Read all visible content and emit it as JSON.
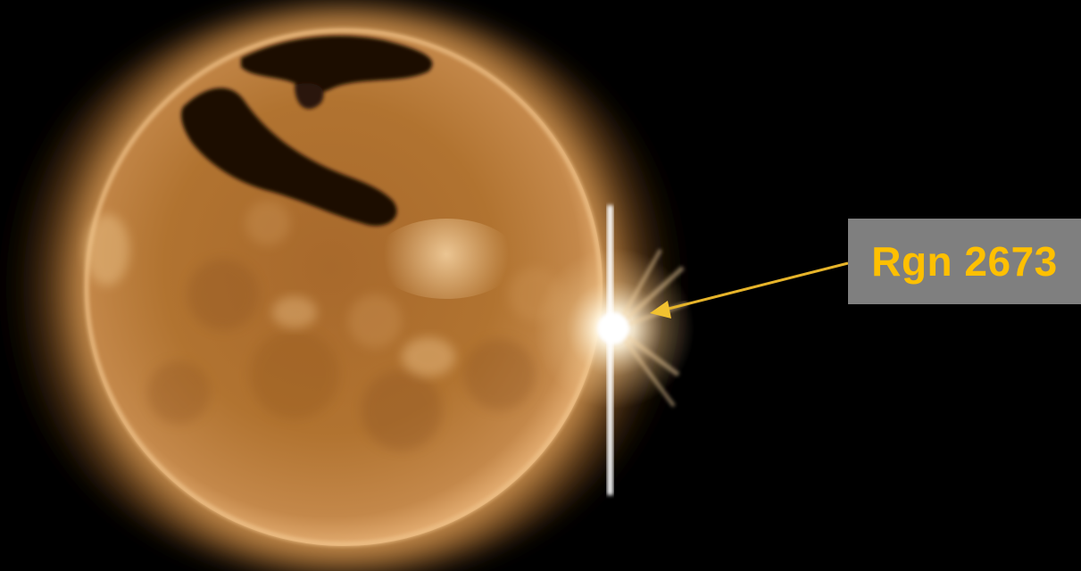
{
  "annotation": {
    "label": "Rgn 2673",
    "label_color": "#ffc000",
    "box_color": "#7f7f7f",
    "arrow_color": "#e6b42a"
  },
  "colors": {
    "background": "#000000",
    "sun_core": "#b0702e",
    "sun_corona": "#e0a25a",
    "coronal_hole": "#120804",
    "flare": "#ffffff"
  }
}
